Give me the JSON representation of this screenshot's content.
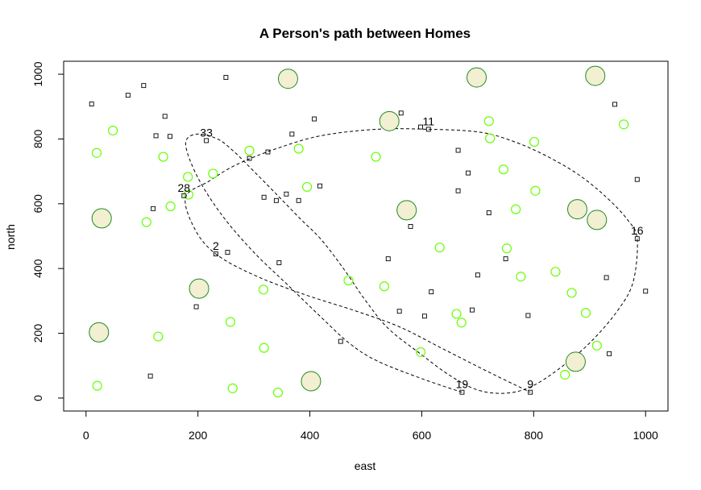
{
  "chart_data": {
    "type": "scatter",
    "title": "A Person's path between Homes",
    "xlabel": "east",
    "ylabel": "north",
    "xlim": [
      -40,
      1040
    ],
    "ylim": [
      -40,
      1040
    ],
    "xticks": [
      0,
      200,
      400,
      600,
      800,
      1000
    ],
    "yticks": [
      0,
      200,
      400,
      600,
      800,
      1000
    ],
    "colors": {
      "small_circle_stroke": "#66ff00",
      "large_circle_stroke": "#228b22",
      "large_circle_fill": "#f2efd2",
      "square_stroke": "#000000",
      "path_stroke": "#000000"
    },
    "squares": [
      [
        10,
        908
      ],
      [
        75,
        935
      ],
      [
        103,
        965
      ],
      [
        141,
        870
      ],
      [
        250,
        990
      ],
      [
        125,
        810
      ],
      [
        150,
        808
      ],
      [
        215,
        795
      ],
      [
        292,
        740
      ],
      [
        325,
        760
      ],
      [
        368,
        815
      ],
      [
        408,
        862
      ],
      [
        563,
        880
      ],
      [
        598,
        837
      ],
      [
        612,
        830
      ],
      [
        665,
        765
      ],
      [
        683,
        695
      ],
      [
        665,
        640
      ],
      [
        720,
        572
      ],
      [
        750,
        430
      ],
      [
        945,
        907
      ],
      [
        985,
        675
      ],
      [
        985,
        492
      ],
      [
        1000,
        330
      ],
      [
        930,
        372
      ],
      [
        935,
        137
      ],
      [
        790,
        255
      ],
      [
        700,
        380
      ],
      [
        690,
        272
      ],
      [
        617,
        328
      ],
      [
        605,
        253
      ],
      [
        580,
        530
      ],
      [
        540,
        430
      ],
      [
        560,
        268
      ],
      [
        455,
        175
      ],
      [
        345,
        418
      ],
      [
        318,
        620
      ],
      [
        340,
        610
      ],
      [
        358,
        630
      ],
      [
        380,
        610
      ],
      [
        418,
        655
      ],
      [
        120,
        585
      ],
      [
        175,
        625
      ],
      [
        232,
        445
      ],
      [
        253,
        450
      ],
      [
        197,
        282
      ],
      [
        115,
        68
      ],
      [
        672,
        18
      ],
      [
        794,
        18
      ]
    ],
    "small_circles": [
      [
        19,
        757
      ],
      [
        48,
        826
      ],
      [
        20,
        38
      ],
      [
        108,
        543
      ],
      [
        138,
        745
      ],
      [
        151,
        592
      ],
      [
        182,
        683
      ],
      [
        183,
        628
      ],
      [
        227,
        693
      ],
      [
        292,
        764
      ],
      [
        317,
        335
      ],
      [
        318,
        155
      ],
      [
        258,
        235
      ],
      [
        262,
        30
      ],
      [
        343,
        17
      ],
      [
        129,
        190
      ],
      [
        380,
        770
      ],
      [
        395,
        652
      ],
      [
        469,
        363
      ],
      [
        518,
        745
      ],
      [
        533,
        345
      ],
      [
        598,
        142
      ],
      [
        632,
        465
      ],
      [
        662,
        260
      ],
      [
        671,
        233
      ],
      [
        720,
        855
      ],
      [
        722,
        802
      ],
      [
        746,
        706
      ],
      [
        752,
        462
      ],
      [
        768,
        583
      ],
      [
        777,
        375
      ],
      [
        801,
        791
      ],
      [
        803,
        640
      ],
      [
        839,
        390
      ],
      [
        868,
        325
      ],
      [
        856,
        72
      ],
      [
        893,
        263
      ],
      [
        913,
        162
      ],
      [
        961,
        845
      ]
    ],
    "large_circles": [
      [
        361,
        986
      ],
      [
        542,
        855
      ],
      [
        698,
        990
      ],
      [
        910,
        995
      ],
      [
        28,
        555
      ],
      [
        573,
        580
      ],
      [
        878,
        583
      ],
      [
        913,
        550
      ],
      [
        202,
        338
      ],
      [
        23,
        203
      ],
      [
        402,
        52
      ],
      [
        875,
        112
      ]
    ],
    "labeled_points": [
      {
        "label": "33",
        "x": 215,
        "y": 795
      },
      {
        "label": "11",
        "x": 612,
        "y": 830
      },
      {
        "label": "28",
        "x": 175,
        "y": 625
      },
      {
        "label": "2",
        "x": 232,
        "y": 445
      },
      {
        "label": "16",
        "x": 985,
        "y": 492
      },
      {
        "label": "19",
        "x": 672,
        "y": 18
      },
      {
        "label": "9",
        "x": 794,
        "y": 18
      }
    ],
    "path": [
      [
        672,
        18
      ],
      [
        600,
        60
      ],
      [
        520,
        115
      ],
      [
        470,
        170
      ],
      [
        420,
        250
      ],
      [
        360,
        350
      ],
      [
        300,
        450
      ],
      [
        245,
        560
      ],
      [
        200,
        680
      ],
      [
        178,
        785
      ],
      [
        198,
        815
      ],
      [
        235,
        800
      ],
      [
        265,
        760
      ],
      [
        300,
        700
      ],
      [
        340,
        630
      ],
      [
        382,
        555
      ],
      [
        420,
        490
      ],
      [
        460,
        400
      ],
      [
        500,
        300
      ],
      [
        540,
        215
      ],
      [
        595,
        140
      ],
      [
        650,
        70
      ],
      [
        700,
        25
      ],
      [
        750,
        15
      ],
      [
        795,
        35
      ],
      [
        845,
        90
      ],
      [
        900,
        170
      ],
      [
        950,
        270
      ],
      [
        978,
        360
      ],
      [
        985,
        492
      ],
      [
        968,
        550
      ],
      [
        930,
        620
      ],
      [
        880,
        690
      ],
      [
        820,
        750
      ],
      [
        760,
        795
      ],
      [
        700,
        822
      ],
      [
        612,
        830
      ],
      [
        520,
        830
      ],
      [
        420,
        810
      ],
      [
        340,
        770
      ],
      [
        268,
        720
      ],
      [
        220,
        670
      ],
      [
        178,
        620
      ],
      [
        195,
        520
      ],
      [
        232,
        445
      ],
      [
        300,
        380
      ],
      [
        390,
        320
      ],
      [
        480,
        270
      ],
      [
        560,
        220
      ],
      [
        640,
        150
      ],
      [
        720,
        80
      ],
      [
        794,
        18
      ]
    ]
  }
}
